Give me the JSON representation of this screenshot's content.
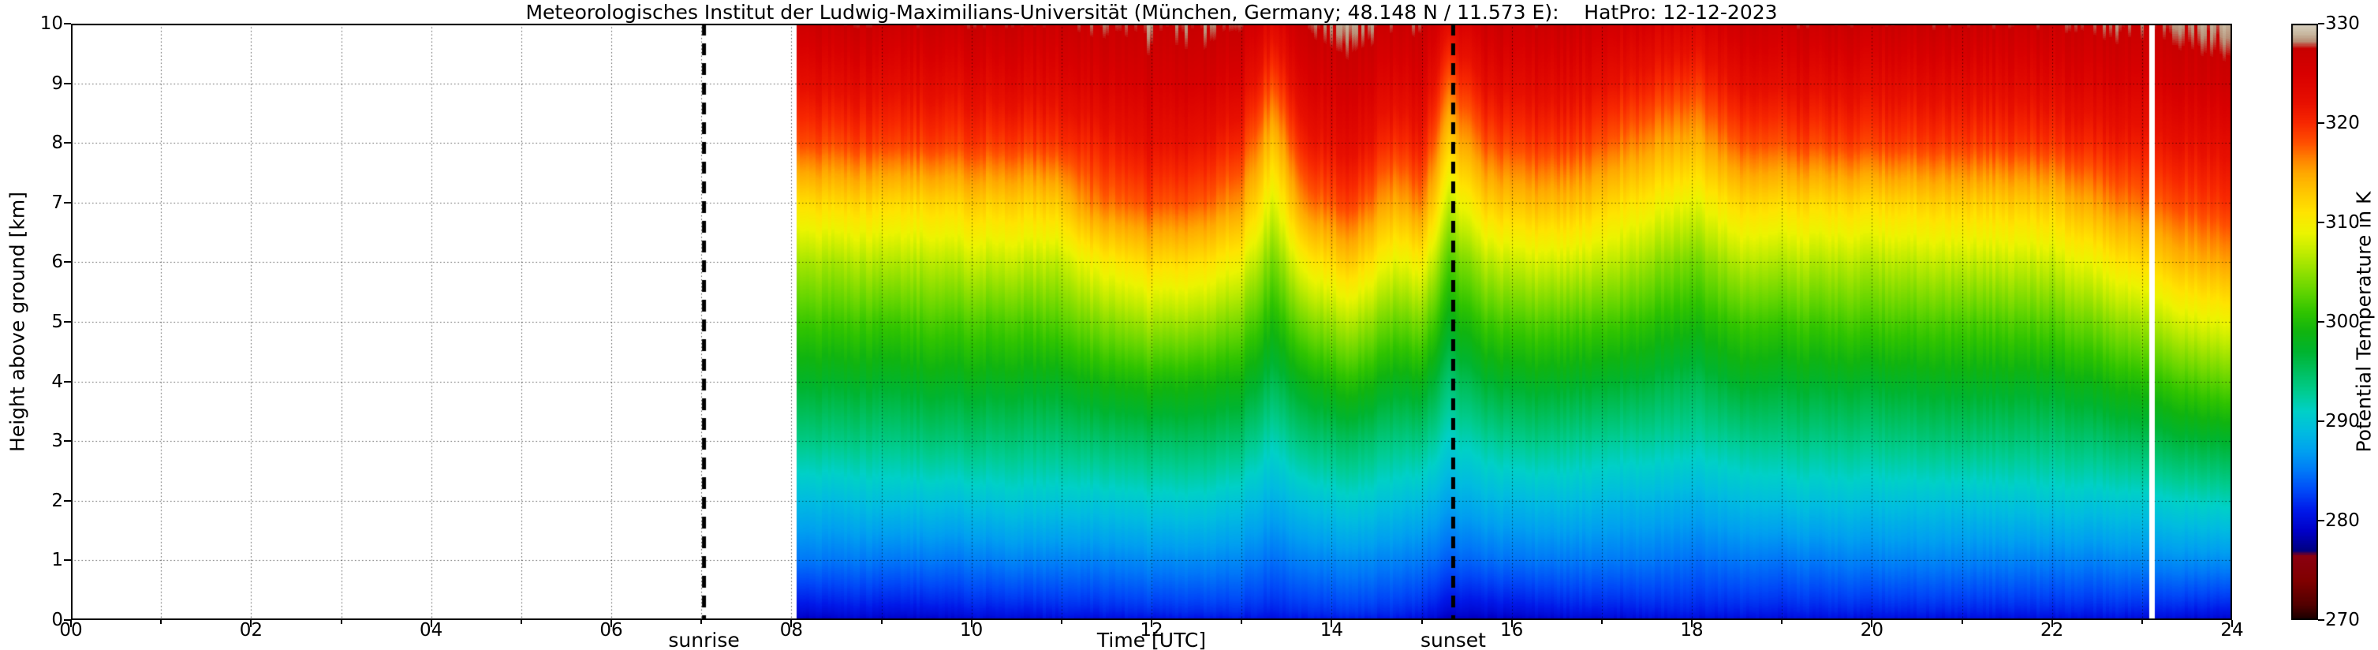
{
  "title": "Meteorologisches Institut der Ludwig-Maximilians-Universität (München, Germany; 48.148 N / 11.573 E):    HatPro: 12-12-2023",
  "axes": {
    "xlabel": "Time [UTC]",
    "ylabel": "Height above ground [km]",
    "xlim": [
      0,
      24
    ],
    "ylim": [
      0,
      10
    ],
    "x_tick_labels": [
      "00",
      "02",
      "04",
      "06",
      "08",
      "10",
      "12",
      "14",
      "16",
      "18",
      "20",
      "22",
      "24"
    ],
    "x_tick_values": [
      0,
      2,
      4,
      6,
      8,
      10,
      12,
      14,
      16,
      18,
      20,
      22,
      24
    ],
    "x_minor_step": 1,
    "y_tick_labels": [
      "0",
      "1",
      "2",
      "3",
      "4",
      "5",
      "6",
      "7",
      "8",
      "9",
      "10"
    ],
    "y_tick_values": [
      0,
      1,
      2,
      3,
      4,
      5,
      6,
      7,
      8,
      9,
      10
    ],
    "grid_style": "dotted"
  },
  "annotations": {
    "sunrise": {
      "label": "sunrise",
      "time": 7.03
    },
    "sunset": {
      "label": "sunset",
      "time": 15.35
    }
  },
  "colorbar": {
    "label": "Potential Temperature in K",
    "min": 270,
    "max": 330,
    "tick_values": [
      270,
      280,
      290,
      300,
      310,
      320,
      330
    ],
    "tick_labels": [
      "270",
      "280",
      "290",
      "300",
      "310",
      "320",
      "330"
    ],
    "stops": [
      [
        270,
        "#140000"
      ],
      [
        271.5,
        "#500000"
      ],
      [
        274,
        "#800000"
      ],
      [
        276.5,
        "#8b0010"
      ],
      [
        277,
        "#000080"
      ],
      [
        279,
        "#0000c8"
      ],
      [
        281,
        "#0018e8"
      ],
      [
        283,
        "#0048f8"
      ],
      [
        285,
        "#0078f8"
      ],
      [
        287,
        "#00a0f0"
      ],
      [
        289,
        "#00bce0"
      ],
      [
        291,
        "#00d0c8"
      ],
      [
        293,
        "#00cc90"
      ],
      [
        295,
        "#00c060"
      ],
      [
        297,
        "#00b430"
      ],
      [
        299,
        "#10b410"
      ],
      [
        301,
        "#30c400"
      ],
      [
        303,
        "#60d400"
      ],
      [
        305,
        "#90e000"
      ],
      [
        307,
        "#c0ec00"
      ],
      [
        309,
        "#ecf400"
      ],
      [
        311,
        "#ffe400"
      ],
      [
        313,
        "#ffc800"
      ],
      [
        315,
        "#ffa800"
      ],
      [
        316.5,
        "#ff8000"
      ],
      [
        318,
        "#ff5000"
      ],
      [
        320,
        "#f82800"
      ],
      [
        322,
        "#e81000"
      ],
      [
        325,
        "#d80000"
      ],
      [
        327.5,
        "#c80000"
      ],
      [
        328.3,
        "#b89078"
      ],
      [
        329,
        "#c8b8a0"
      ],
      [
        330,
        "#d8d0c0"
      ]
    ]
  },
  "chart_data": {
    "type": "heatmap",
    "title": "HatPro potential temperature time-height section 12-12-2023",
    "xlabel": "Time [UTC]",
    "ylabel": "Height above ground [km]",
    "value_label": "Potential Temperature in K",
    "xlim": [
      0,
      24
    ],
    "ylim": [
      0,
      10
    ],
    "vlim": [
      270,
      330
    ],
    "data_start_time": 8.05,
    "data_end_time": 24,
    "missing_data_stripe": [
      23.08,
      23.14
    ],
    "values_orientation": "values[i][j] = potential temperature in K at time x[i] and height y[j]",
    "x": [
      8.05,
      8.5,
      9,
      9.5,
      10,
      10.5,
      11,
      11.3,
      12,
      12.5,
      13,
      13.35,
      13.7,
      14.2,
      14.7,
      15,
      15.3,
      15.7,
      16.2,
      16.7,
      17.2,
      17.6,
      18,
      18.5,
      19,
      20,
      21,
      22,
      22.5,
      23,
      23.5,
      24
    ],
    "y": [
      0,
      1,
      2,
      3,
      4,
      5,
      6,
      7,
      8,
      9,
      10
    ],
    "values": [
      [
        279.5,
        285,
        289,
        293.5,
        297.5,
        301.5,
        306,
        311.5,
        318.5,
        322.5,
        326.5
      ],
      [
        280,
        285,
        289,
        293.5,
        297.5,
        301.5,
        306,
        312,
        318.5,
        323,
        327
      ],
      [
        280,
        285,
        289.5,
        293.5,
        297.5,
        301.5,
        306.5,
        312,
        319,
        323,
        327
      ],
      [
        280,
        285,
        289.5,
        294,
        298,
        302,
        306.5,
        312,
        319,
        323,
        327
      ],
      [
        280.5,
        285,
        289.5,
        294,
        298,
        302,
        307,
        312.5,
        319,
        323,
        327
      ],
      [
        280.5,
        285.5,
        290,
        294,
        298,
        302,
        307,
        312.5,
        319,
        323.5,
        327
      ],
      [
        281,
        285.5,
        290,
        294,
        298,
        302.5,
        307,
        313,
        319.5,
        323.5,
        327
      ],
      [
        281,
        285.5,
        290,
        294.5,
        299,
        304,
        309.5,
        316.5,
        320.5,
        324.5,
        327.5
      ],
      [
        281.5,
        286,
        290.5,
        295,
        300,
        306,
        312,
        318.5,
        322.5,
        325.5,
        328
      ],
      [
        281.5,
        286,
        290.5,
        295,
        299.5,
        305.5,
        311.5,
        318,
        322,
        325.5,
        328
      ],
      [
        281.5,
        285.5,
        289.5,
        294,
        298.5,
        303.5,
        309,
        315,
        319.5,
        323.5,
        327
      ],
      [
        281,
        284.5,
        288,
        291.5,
        295.5,
        299.5,
        303.5,
        308,
        313,
        318,
        323
      ],
      [
        281.5,
        285.5,
        289.5,
        294,
        298.5,
        304,
        310,
        316.5,
        321,
        324.5,
        327.5
      ],
      [
        282,
        286,
        290.5,
        295,
        300.5,
        306.5,
        313,
        319,
        323,
        326,
        328.5
      ],
      [
        281.5,
        285.5,
        289.5,
        293.5,
        298,
        303,
        308.5,
        314.5,
        319.5,
        323.5,
        327
      ],
      [
        281,
        285,
        289,
        293.5,
        298.5,
        304,
        310,
        316.5,
        321,
        324.5,
        327.5
      ],
      [
        279.5,
        284,
        287.5,
        291,
        294.5,
        298.5,
        302.5,
        307.5,
        313,
        318,
        323.5
      ],
      [
        279.5,
        284.5,
        288.5,
        292.5,
        297,
        301.5,
        306.5,
        312.5,
        318,
        322.5,
        326.5
      ],
      [
        280,
        285,
        289,
        293.5,
        298,
        302.5,
        308,
        314,
        319.5,
        323.5,
        327
      ],
      [
        280.5,
        285,
        289,
        293,
        297.5,
        302,
        307.5,
        313.5,
        319,
        323,
        326.5
      ],
      [
        280.5,
        285,
        288.5,
        292.5,
        297,
        301.5,
        306.5,
        311.5,
        317,
        321.5,
        325.5
      ],
      [
        281,
        285,
        288.5,
        292.5,
        296.5,
        300.5,
        305,
        310,
        315.5,
        320.5,
        325
      ],
      [
        281,
        284.5,
        288,
        292,
        295.5,
        299.5,
        303.5,
        308.5,
        314,
        319,
        324
      ],
      [
        281,
        285,
        289,
        293,
        297.5,
        301.5,
        306.5,
        312,
        318,
        322.5,
        326.5
      ],
      [
        281,
        285,
        289.5,
        293.5,
        297.5,
        301.5,
        306.5,
        312,
        318.5,
        323,
        327
      ],
      [
        281,
        285.5,
        289.5,
        293.5,
        297.5,
        302,
        306.5,
        312,
        319,
        323,
        327
      ],
      [
        281,
        285.5,
        289.5,
        294,
        298,
        302,
        307,
        312.5,
        319,
        323,
        327
      ],
      [
        281,
        285.5,
        290,
        294,
        298,
        302.5,
        307.5,
        313,
        319.5,
        323.5,
        327
      ],
      [
        281,
        285.5,
        290,
        294.5,
        299,
        304,
        309.5,
        315.5,
        320.5,
        324.5,
        327.5
      ],
      [
        281,
        286,
        290.5,
        295.5,
        300.5,
        306,
        312,
        317.5,
        321.5,
        325,
        328
      ],
      [
        280.5,
        286,
        291,
        296.5,
        302,
        308,
        314,
        318.5,
        322,
        325.5,
        328
      ],
      [
        280,
        286,
        291.5,
        297,
        303,
        309,
        315,
        319.5,
        322.5,
        326,
        328.5
      ]
    ]
  }
}
